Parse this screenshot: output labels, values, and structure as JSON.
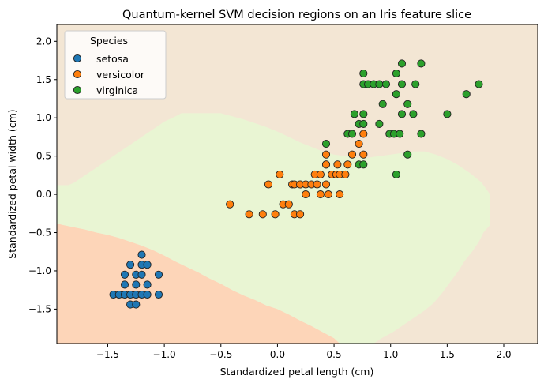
{
  "chart_data": {
    "type": "scatter",
    "title": "Quantum-kernel SVM decision regions on an Iris feature slice",
    "xlabel": "Standardized petal length (cm)",
    "ylabel": "Standardized petal width (cm)",
    "xlim": [
      -1.95,
      2.3
    ],
    "ylim": [
      -1.95,
      2.22
    ],
    "xticks": [
      -1.5,
      -1.0,
      -0.5,
      0.0,
      0.5,
      1.0,
      1.5,
      2.0
    ],
    "yticks": [
      -1.5,
      -1.0,
      -0.5,
      0.0,
      0.5,
      1.0,
      1.5,
      2.0
    ],
    "xtick_labels": [
      "−1.5",
      "−1.0",
      "−0.5",
      "0.0",
      "0.5",
      "1.0",
      "1.5",
      "2.0"
    ],
    "ytick_labels": [
      "−1.5",
      "−1.0",
      "−0.5",
      "0.0",
      "0.5",
      "1.0",
      "1.5",
      "2.0"
    ],
    "grid": false,
    "legend": {
      "title": "Species",
      "placement": "top-left"
    },
    "regions": [
      {
        "name": "setosa",
        "color": "#fdd5b8",
        "polygon": [
          [
            -1.95,
            -0.38
          ],
          [
            -1.9,
            -0.4
          ],
          [
            -1.8,
            -0.43
          ],
          [
            -1.7,
            -0.46
          ],
          [
            -1.6,
            -0.5
          ],
          [
            -1.5,
            -0.53
          ],
          [
            -1.4,
            -0.57
          ],
          [
            -1.3,
            -0.62
          ],
          [
            -1.2,
            -0.67
          ],
          [
            -1.1,
            -0.73
          ],
          [
            -1.0,
            -0.8
          ],
          [
            -0.9,
            -0.88
          ],
          [
            -0.8,
            -0.95
          ],
          [
            -0.7,
            -1.02
          ],
          [
            -0.6,
            -1.1
          ],
          [
            -0.5,
            -1.17
          ],
          [
            -0.4,
            -1.25
          ],
          [
            -0.3,
            -1.32
          ],
          [
            -0.2,
            -1.38
          ],
          [
            -0.1,
            -1.45
          ],
          [
            0.0,
            -1.5
          ],
          [
            0.1,
            -1.57
          ],
          [
            0.2,
            -1.65
          ],
          [
            0.3,
            -1.72
          ],
          [
            0.4,
            -1.8
          ],
          [
            0.5,
            -1.88
          ],
          [
            0.55,
            -1.95
          ],
          [
            -1.95,
            -1.95
          ]
        ]
      },
      {
        "name": "versicolor",
        "color": "#e9f5d3",
        "polygon": [
          [
            -1.95,
            0.12
          ],
          [
            -1.85,
            0.12
          ],
          [
            -1.8,
            0.15
          ],
          [
            -1.7,
            0.25
          ],
          [
            -1.6,
            0.35
          ],
          [
            -1.5,
            0.45
          ],
          [
            -1.4,
            0.55
          ],
          [
            -1.3,
            0.65
          ],
          [
            -1.2,
            0.75
          ],
          [
            -1.1,
            0.85
          ],
          [
            -1.0,
            0.95
          ],
          [
            -0.9,
            1.02
          ],
          [
            -0.85,
            1.06
          ],
          [
            -0.5,
            1.06
          ],
          [
            -0.4,
            1.02
          ],
          [
            -0.3,
            0.98
          ],
          [
            -0.2,
            0.93
          ],
          [
            -0.1,
            0.88
          ],
          [
            0.0,
            0.82
          ],
          [
            0.1,
            0.75
          ],
          [
            0.2,
            0.68
          ],
          [
            0.3,
            0.62
          ],
          [
            0.4,
            0.56
          ],
          [
            0.5,
            0.52
          ],
          [
            0.6,
            0.5
          ],
          [
            0.7,
            0.48
          ],
          [
            0.8,
            0.48
          ],
          [
            0.9,
            0.5
          ],
          [
            1.0,
            0.52
          ],
          [
            1.1,
            0.54
          ],
          [
            1.2,
            0.56
          ],
          [
            1.3,
            0.56
          ],
          [
            1.4,
            0.52
          ],
          [
            1.5,
            0.46
          ],
          [
            1.6,
            0.38
          ],
          [
            1.7,
            0.28
          ],
          [
            1.8,
            0.16
          ],
          [
            1.88,
            0.0
          ],
          [
            1.88,
            -0.4
          ],
          [
            1.82,
            -0.5
          ],
          [
            1.78,
            -0.62
          ],
          [
            1.72,
            -0.75
          ],
          [
            1.65,
            -0.88
          ],
          [
            1.6,
            -1.0
          ],
          [
            1.55,
            -1.1
          ],
          [
            1.5,
            -1.2
          ],
          [
            1.45,
            -1.3
          ],
          [
            1.38,
            -1.42
          ],
          [
            1.3,
            -1.52
          ],
          [
            1.22,
            -1.6
          ],
          [
            1.12,
            -1.7
          ],
          [
            1.02,
            -1.8
          ],
          [
            0.92,
            -1.88
          ],
          [
            0.85,
            -1.95
          ],
          [
            0.55,
            -1.95
          ],
          [
            0.5,
            -1.88
          ],
          [
            0.4,
            -1.8
          ],
          [
            0.3,
            -1.72
          ],
          [
            0.2,
            -1.65
          ],
          [
            0.1,
            -1.57
          ],
          [
            0.0,
            -1.5
          ],
          [
            -0.1,
            -1.45
          ],
          [
            -0.2,
            -1.38
          ],
          [
            -0.3,
            -1.32
          ],
          [
            -0.4,
            -1.25
          ],
          [
            -0.5,
            -1.17
          ],
          [
            -0.6,
            -1.1
          ],
          [
            -0.7,
            -1.02
          ],
          [
            -0.8,
            -0.95
          ],
          [
            -0.9,
            -0.88
          ],
          [
            -1.0,
            -0.8
          ],
          [
            -1.1,
            -0.73
          ],
          [
            -1.2,
            -0.67
          ],
          [
            -1.3,
            -0.62
          ],
          [
            -1.4,
            -0.57
          ],
          [
            -1.5,
            -0.53
          ],
          [
            -1.6,
            -0.5
          ],
          [
            -1.7,
            -0.46
          ],
          [
            -1.8,
            -0.43
          ],
          [
            -1.9,
            -0.4
          ],
          [
            -1.95,
            -0.38
          ]
        ]
      },
      {
        "name": "virginica",
        "color": "#f3e6d4",
        "polygon": "background"
      }
    ],
    "series": [
      {
        "name": "setosa",
        "color": "#1f77b4",
        "points": [
          [
            -1.45,
            -1.31
          ],
          [
            -1.4,
            -1.31
          ],
          [
            -1.35,
            -1.31
          ],
          [
            -1.3,
            -1.31
          ],
          [
            -1.25,
            -1.31
          ],
          [
            -1.2,
            -1.31
          ],
          [
            -1.15,
            -1.31
          ],
          [
            -1.05,
            -1.31
          ],
          [
            -1.35,
            -1.18
          ],
          [
            -1.25,
            -1.18
          ],
          [
            -1.15,
            -1.18
          ],
          [
            -1.35,
            -1.05
          ],
          [
            -1.25,
            -1.05
          ],
          [
            -1.2,
            -1.05
          ],
          [
            -1.05,
            -1.05
          ],
          [
            -1.3,
            -1.44
          ],
          [
            -1.25,
            -1.44
          ],
          [
            -1.2,
            -0.92
          ],
          [
            -1.3,
            -0.92
          ],
          [
            -1.15,
            -0.92
          ],
          [
            -1.2,
            -0.79
          ]
        ]
      },
      {
        "name": "versicolor",
        "color": "#ff7f0e",
        "points": [
          [
            -0.42,
            -0.13
          ],
          [
            -0.25,
            -0.26
          ],
          [
            -0.13,
            -0.26
          ],
          [
            -0.02,
            -0.26
          ],
          [
            0.15,
            -0.26
          ],
          [
            0.2,
            -0.26
          ],
          [
            -0.08,
            0.13
          ],
          [
            0.05,
            -0.13
          ],
          [
            0.1,
            -0.13
          ],
          [
            0.02,
            0.26
          ],
          [
            0.13,
            0.13
          ],
          [
            0.15,
            0.13
          ],
          [
            0.2,
            0.13
          ],
          [
            0.25,
            0.13
          ],
          [
            0.3,
            0.13
          ],
          [
            0.35,
            0.13
          ],
          [
            0.25,
            0.0
          ],
          [
            0.38,
            0.0
          ],
          [
            0.45,
            0.0
          ],
          [
            0.55,
            0.0
          ],
          [
            0.33,
            0.26
          ],
          [
            0.38,
            0.26
          ],
          [
            0.43,
            0.13
          ],
          [
            0.43,
            0.39
          ],
          [
            0.43,
            0.39
          ],
          [
            0.43,
            0.52
          ],
          [
            0.48,
            0.26
          ],
          [
            0.52,
            0.26
          ],
          [
            0.53,
            0.39
          ],
          [
            0.55,
            0.26
          ],
          [
            0.6,
            0.26
          ],
          [
            0.62,
            0.39
          ],
          [
            0.66,
            0.52
          ],
          [
            0.72,
            0.66
          ],
          [
            0.76,
            0.52
          ],
          [
            0.76,
            0.79
          ]
        ]
      },
      {
        "name": "virginica",
        "color": "#2ca02c",
        "points": [
          [
            0.43,
            0.66
          ],
          [
            0.62,
            0.79
          ],
          [
            0.66,
            0.79
          ],
          [
            0.68,
            1.05
          ],
          [
            0.72,
            0.92
          ],
          [
            0.72,
            0.39
          ],
          [
            0.76,
            0.39
          ],
          [
            0.76,
            0.92
          ],
          [
            0.76,
            1.05
          ],
          [
            0.76,
            1.44
          ],
          [
            0.76,
            1.58
          ],
          [
            0.8,
            1.44
          ],
          [
            0.85,
            1.44
          ],
          [
            0.9,
            1.44
          ],
          [
            0.9,
            0.92
          ],
          [
            0.93,
            1.18
          ],
          [
            0.96,
            1.44
          ],
          [
            0.99,
            0.79
          ],
          [
            1.03,
            0.79
          ],
          [
            1.05,
            1.31
          ],
          [
            1.05,
            1.58
          ],
          [
            1.05,
            0.26
          ],
          [
            1.08,
            0.79
          ],
          [
            1.1,
            1.05
          ],
          [
            1.1,
            1.44
          ],
          [
            1.1,
            1.71
          ],
          [
            1.15,
            1.18
          ],
          [
            1.15,
            0.52
          ],
          [
            1.2,
            1.05
          ],
          [
            1.22,
            1.44
          ],
          [
            1.27,
            1.71
          ],
          [
            1.27,
            0.79
          ],
          [
            1.5,
            1.05
          ],
          [
            1.67,
            1.31
          ],
          [
            1.78,
            1.44
          ]
        ]
      }
    ]
  }
}
